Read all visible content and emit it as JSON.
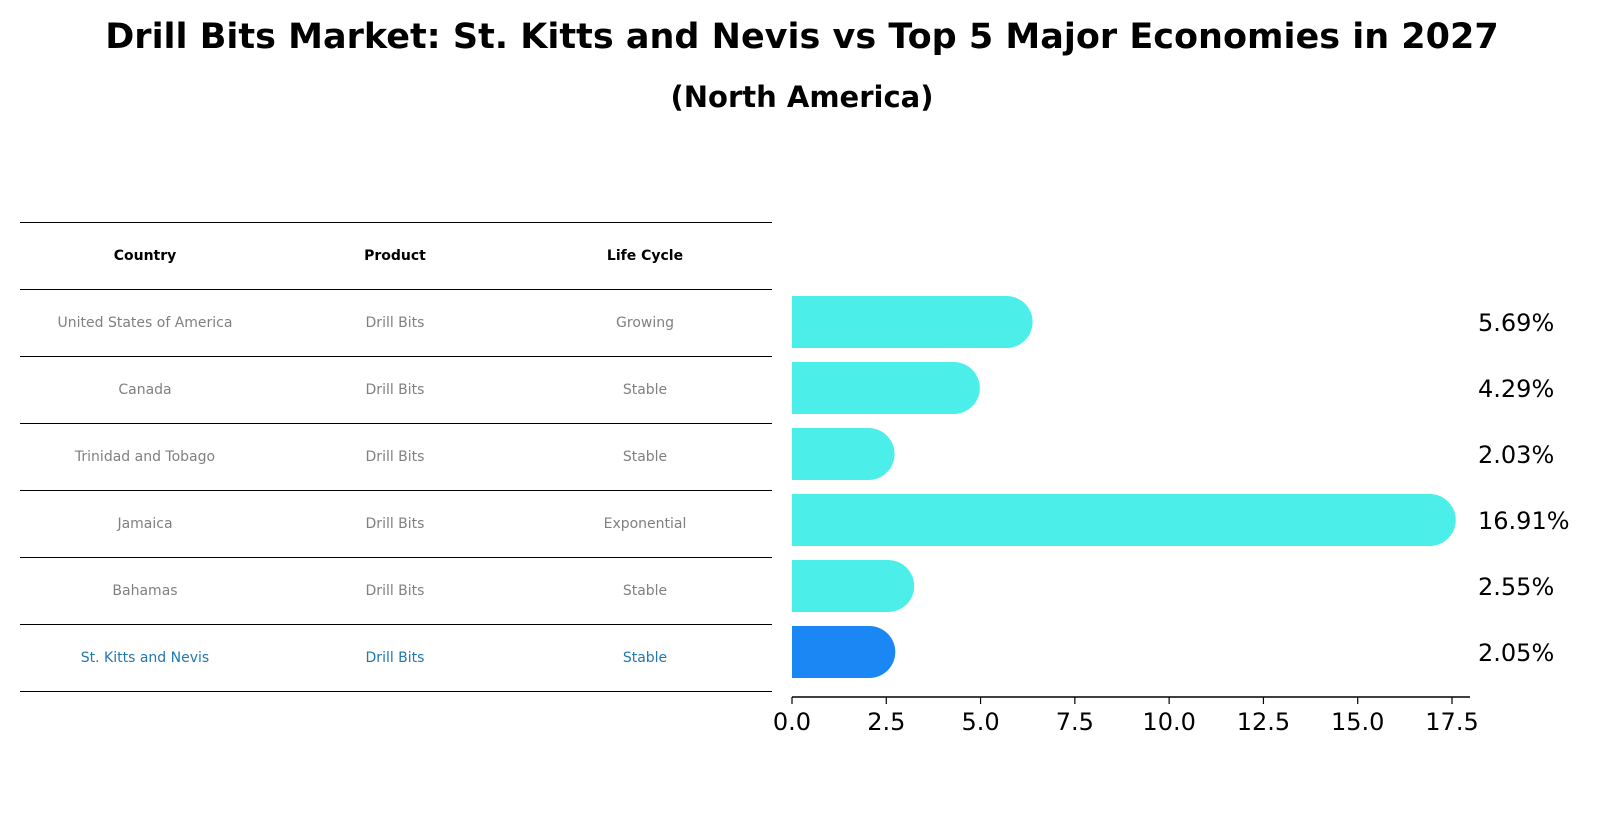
{
  "title": "Drill Bits Market: St. Kitts and Nevis vs Top 5 Major Economies in 2027",
  "subtitle": "(North America)",
  "table": {
    "headers": [
      "Country",
      "Product",
      "Life Cycle"
    ],
    "rows": [
      [
        "United States of America",
        "Drill Bits",
        "Growing"
      ],
      [
        "Canada",
        "Drill Bits",
        "Stable"
      ],
      [
        "Trinidad and Tobago",
        "Drill Bits",
        "Stable"
      ],
      [
        "Jamaica",
        "Drill Bits",
        "Exponential"
      ],
      [
        "Bahamas",
        "Drill Bits",
        "Stable"
      ],
      [
        "St. Kitts and Nevis",
        "Drill Bits",
        "Stable"
      ]
    ]
  },
  "chart_data": {
    "type": "bar",
    "orientation": "horizontal",
    "categories": [
      "United States of America",
      "Canada",
      "Trinidad and Tobago",
      "Jamaica",
      "Bahamas",
      "St. Kitts and Nevis"
    ],
    "values": [
      5.69,
      4.29,
      2.03,
      16.91,
      2.55,
      2.05
    ],
    "value_labels": [
      "5.69%",
      "4.29%",
      "2.03%",
      "16.91%",
      "2.55%",
      "2.05%"
    ],
    "xlim": [
      0,
      17.5
    ],
    "xticks": [
      "0.0",
      "2.5",
      "5.0",
      "7.5",
      "10.0",
      "12.5",
      "15.0",
      "17.5"
    ],
    "grid": false,
    "highlight_index": 5,
    "colors": {
      "bar": "#4CEEEA",
      "highlight": "#1A87F5"
    }
  }
}
